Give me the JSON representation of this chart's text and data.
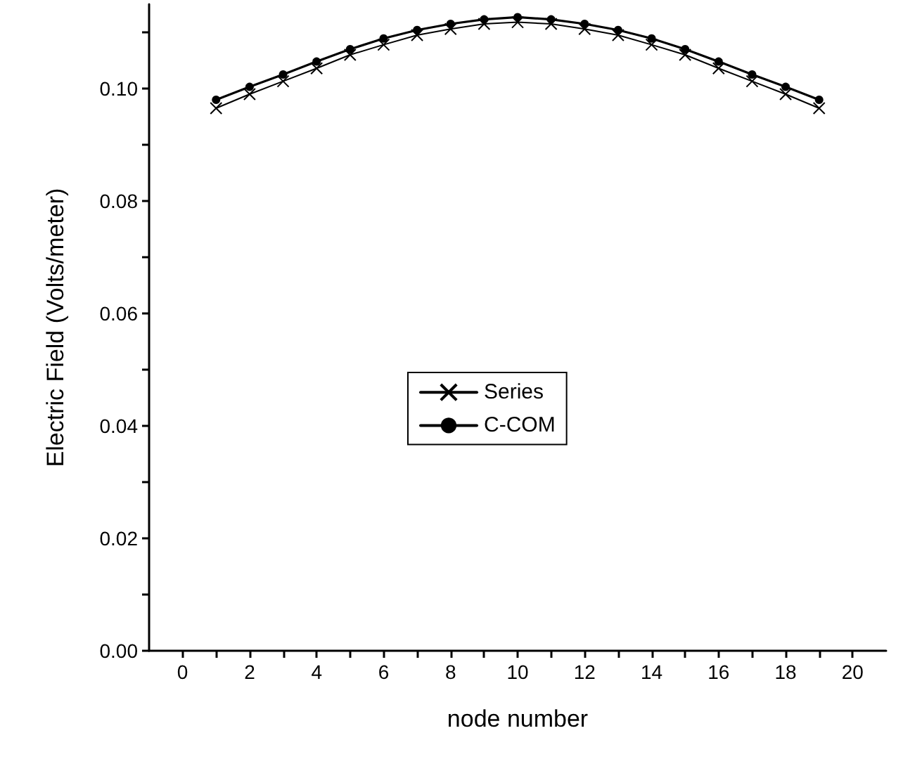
{
  "chart_data": {
    "type": "line",
    "xlabel": "node number",
    "ylabel": "Electric Field (Volts/meter)",
    "x": [
      1,
      2,
      3,
      4,
      5,
      6,
      7,
      8,
      9,
      10,
      11,
      12,
      13,
      14,
      15,
      16,
      17,
      18,
      19
    ],
    "series": [
      {
        "name": "Series",
        "color": "#000000",
        "marker": "cross",
        "values": [
          0.0965,
          0.099,
          0.1013,
          0.1036,
          0.106,
          0.1078,
          0.1095,
          0.1106,
          0.1115,
          0.1118,
          0.1115,
          0.1106,
          0.1095,
          0.1078,
          0.106,
          0.1036,
          0.1013,
          0.099,
          0.0965
        ]
      },
      {
        "name": "C-COM",
        "color": "#000000",
        "marker": "circle",
        "values": [
          0.098,
          0.1003,
          0.1025,
          0.1048,
          0.107,
          0.1089,
          0.1104,
          0.1115,
          0.1123,
          0.1127,
          0.1123,
          0.1115,
          0.1104,
          0.1089,
          0.107,
          0.1048,
          0.1025,
          0.1003,
          0.098
        ]
      }
    ],
    "xlim": [
      -1,
      21
    ],
    "xticks": [
      0,
      {
        "value": 1,
        "label": null
      },
      2,
      {
        "value": 3,
        "label": null
      },
      4,
      {
        "value": 5,
        "label": null
      },
      6,
      {
        "value": 7,
        "label": null
      },
      8,
      {
        "value": 9,
        "label": null
      },
      10,
      {
        "value": 11,
        "label": null
      },
      12,
      {
        "value": 13,
        "label": null
      },
      14,
      {
        "value": 15,
        "label": null
      },
      16,
      {
        "value": 17,
        "label": null
      },
      18,
      {
        "value": 19,
        "label": null
      },
      20
    ],
    "ylim": [
      0,
      0.115
    ],
    "yticks": [
      {
        "value": 0,
        "label": "0.00"
      },
      {
        "value": 0.01,
        "label": null
      },
      {
        "value": 0.02,
        "label": "0.02"
      },
      {
        "value": 0.03,
        "label": null
      },
      {
        "value": 0.04,
        "label": "0.04"
      },
      {
        "value": 0.05,
        "label": null
      },
      {
        "value": 0.06,
        "label": "0.06"
      },
      {
        "value": 0.07,
        "label": null
      },
      {
        "value": 0.08,
        "label": "0.08"
      },
      {
        "value": 0.09,
        "label": null
      },
      {
        "value": 0.1,
        "label": "0.10"
      },
      {
        "value": 0.11,
        "label": null
      }
    ],
    "grid": false,
    "legend": "center",
    "line_style": "solid"
  }
}
